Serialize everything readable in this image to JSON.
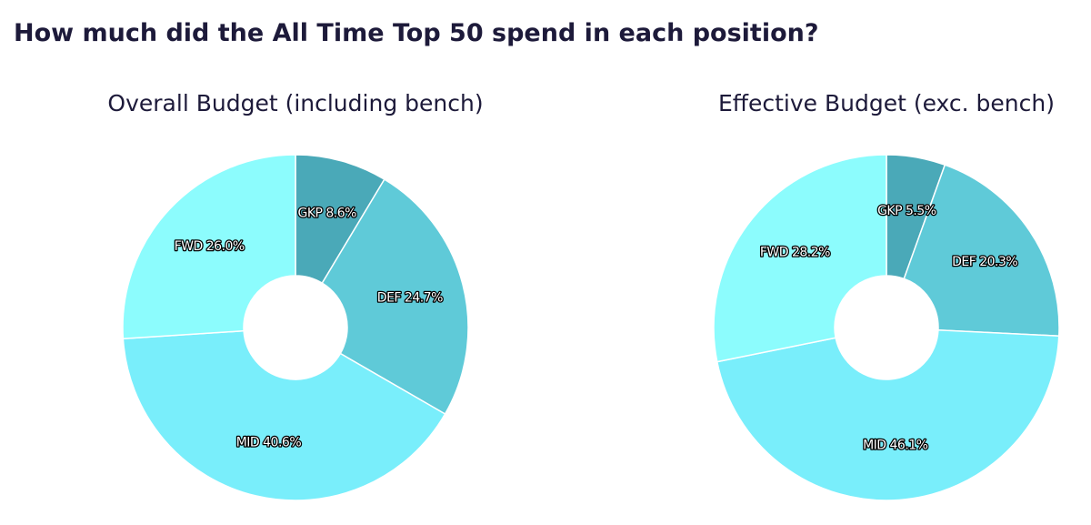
{
  "title": "How much did the All Time Top 50 spend in each position?",
  "chart_data": [
    {
      "type": "pie",
      "title": "Overall Budget (including bench)",
      "values": [
        8.6,
        24.7,
        40.6,
        26.0
      ],
      "value_labels": [
        "GKP 8.6%",
        "DEF 24.7%",
        "MID 40.6%",
        "FWD 26.0%"
      ],
      "colors": [
        "#4aa9b8",
        "#5fcad8",
        "#79eefb",
        "#8cfcfd"
      ]
    },
    {
      "type": "pie",
      "title": "Effective Budget (exc. bench)",
      "values": [
        5.5,
        20.3,
        46.1,
        28.2
      ],
      "value_labels": [
        "GKP 5.5%",
        "DEF 20.3%",
        "MID 46.1%",
        "FWD 28.2%"
      ],
      "colors": [
        "#4aa9b8",
        "#5fcad8",
        "#79eefb",
        "#8cfcfd"
      ]
    }
  ]
}
